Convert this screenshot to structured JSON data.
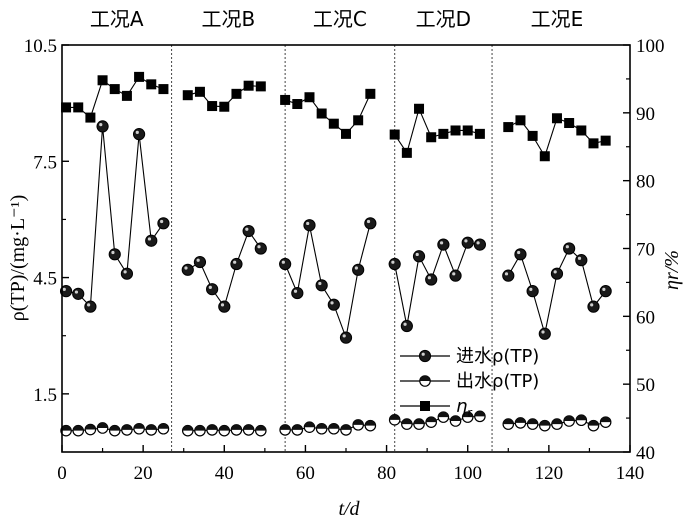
{
  "chart_data": {
    "type": "line",
    "xlabel": "t/d",
    "ylabel_left": "ρ(TP)/(mg·L⁻¹)",
    "ylabel_right": "ηr/%",
    "xlim": [
      0,
      140
    ],
    "ylim_left": [
      0,
      10.5
    ],
    "ylim_right": [
      40,
      100
    ],
    "xticks": [
      0,
      20,
      40,
      60,
      80,
      100,
      120,
      140
    ],
    "yticks_left": [
      1.5,
      4.5,
      7.5,
      10.5
    ],
    "yticks_right": [
      40,
      50,
      60,
      70,
      80,
      90,
      100
    ],
    "dividers": [
      27,
      55,
      82,
      106
    ],
    "condition_labels": [
      "工况A",
      "工况B",
      "工况C",
      "工况D",
      "工况E"
    ],
    "condition_centers": [
      13.5,
      41,
      68.5,
      94,
      122
    ],
    "legend": [
      {
        "label": "进水ρ(TP)",
        "marker": "filled-circle"
      },
      {
        "label": "出水ρ(TP)",
        "marker": "half-circle"
      },
      {
        "label": "ηr",
        "marker": "square"
      }
    ],
    "series": [
      {
        "name": "进水ρ(TP)",
        "axis": "left",
        "segments": [
          {
            "x": [
              1,
              4,
              7,
              10,
              13,
              16,
              19,
              22,
              25
            ],
            "y": [
              4.15,
              4.08,
              3.75,
              8.4,
              5.1,
              4.6,
              8.2,
              5.45,
              5.9
            ]
          },
          {
            "x": [
              31,
              34,
              37,
              40,
              43,
              46,
              49
            ],
            "y": [
              4.7,
              4.9,
              4.2,
              3.75,
              4.85,
              5.7,
              5.25
            ]
          },
          {
            "x": [
              55,
              58,
              61,
              64,
              67,
              70,
              73,
              76
            ],
            "y": [
              4.85,
              4.1,
              5.85,
              4.3,
              3.8,
              2.95,
              4.7,
              5.9
            ]
          },
          {
            "x": [
              82,
              85,
              88,
              91,
              94,
              97,
              100,
              103
            ],
            "y": [
              4.85,
              3.25,
              5.05,
              4.45,
              5.35,
              4.55,
              5.4,
              5.35
            ]
          },
          {
            "x": [
              110,
              113,
              116,
              119,
              122,
              125,
              128,
              131,
              134
            ],
            "y": [
              4.55,
              5.1,
              4.15,
              3.05,
              4.6,
              5.25,
              4.95,
              3.75,
              4.15
            ]
          }
        ]
      },
      {
        "name": "出水ρ(TP)",
        "axis": "left",
        "segments": [
          {
            "x": [
              1,
              4,
              7,
              10,
              13,
              16,
              19,
              22,
              25
            ],
            "y": [
              0.55,
              0.55,
              0.58,
              0.62,
              0.55,
              0.57,
              0.6,
              0.57,
              0.6
            ]
          },
          {
            "x": [
              31,
              34,
              37,
              40,
              43,
              46,
              49
            ],
            "y": [
              0.55,
              0.55,
              0.57,
              0.55,
              0.57,
              0.57,
              0.55
            ]
          },
          {
            "x": [
              55,
              58,
              61,
              64,
              67,
              70,
              73,
              76
            ],
            "y": [
              0.57,
              0.57,
              0.64,
              0.6,
              0.6,
              0.57,
              0.7,
              0.68
            ]
          },
          {
            "x": [
              82,
              85,
              88,
              91,
              94,
              97,
              100,
              103
            ],
            "y": [
              0.83,
              0.72,
              0.72,
              0.77,
              0.9,
              0.8,
              0.9,
              0.92
            ]
          },
          {
            "x": [
              110,
              113,
              116,
              119,
              122,
              125,
              128,
              131,
              134
            ],
            "y": [
              0.72,
              0.75,
              0.72,
              0.68,
              0.72,
              0.8,
              0.82,
              0.68,
              0.77
            ]
          }
        ]
      },
      {
        "name": "ηr",
        "axis": "right",
        "segments": [
          {
            "x": [
              1,
              4,
              7,
              10,
              13,
              16,
              19,
              22,
              25
            ],
            "y": [
              90.8,
              90.8,
              89.3,
              94.8,
              93.5,
              92.5,
              95.3,
              94.2,
              93.5
            ]
          },
          {
            "x": [
              31,
              34,
              37,
              40,
              43,
              46,
              49
            ],
            "y": [
              92.6,
              93.1,
              91.0,
              90.9,
              92.8,
              94.0,
              93.9
            ]
          },
          {
            "x": [
              55,
              58,
              61,
              64,
              67,
              70,
              73,
              76
            ],
            "y": [
              91.9,
              91.3,
              92.3,
              89.9,
              88.4,
              86.9,
              88.9,
              92.8
            ]
          },
          {
            "x": [
              82,
              85,
              88,
              91,
              94,
              97,
              100,
              103
            ],
            "y": [
              86.8,
              84.1,
              90.6,
              86.4,
              86.9,
              87.4,
              87.4,
              86.9
            ]
          },
          {
            "x": [
              110,
              113,
              116,
              119,
              122,
              125,
              128,
              131,
              134
            ],
            "y": [
              87.9,
              88.9,
              86.6,
              83.6,
              89.2,
              88.5,
              87.4,
              85.5,
              85.9
            ]
          }
        ]
      }
    ]
  }
}
